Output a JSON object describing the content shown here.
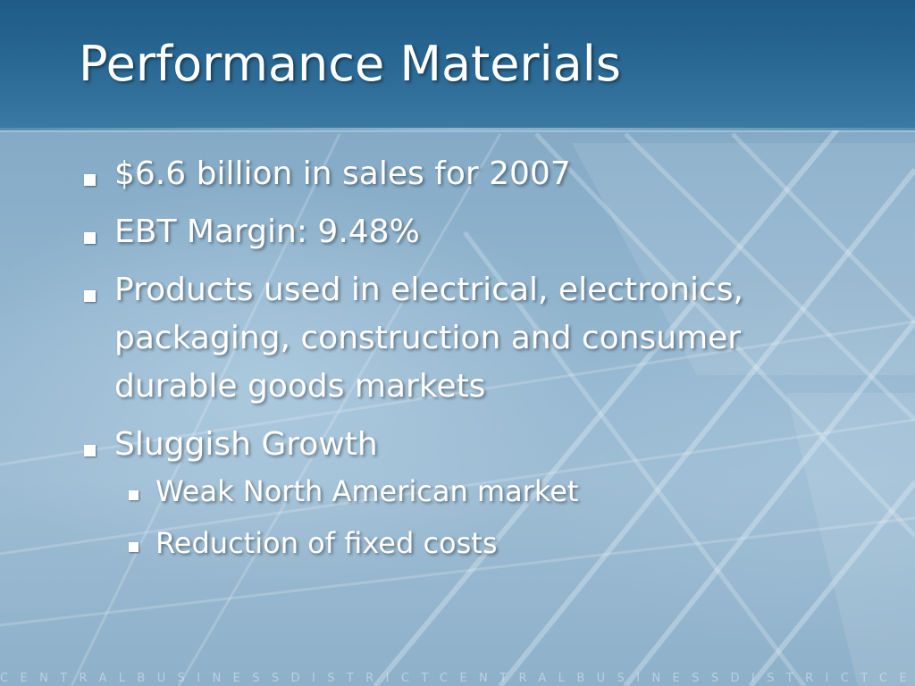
{
  "slide": {
    "title": "Performance Materials",
    "bullets": [
      {
        "text": "$6.6 billion in sales for 2007"
      },
      {
        "text": "EBT Margin: 9.48%"
      },
      {
        "text": "Products used in electrical, electronics, packaging, construction and consumer durable goods markets"
      },
      {
        "text": "Sluggish Growth"
      }
    ],
    "sub_bullets": [
      {
        "text": "Weak North American market"
      },
      {
        "text": "Reduction of fixed costs"
      }
    ],
    "footer": "CENTRALBUSINESSDISTRICTCENTRALBUSINESSDISTRICTCENTRA"
  },
  "colors": {
    "header": "#1f5b86",
    "background": "#8fb3cd",
    "text": "#ffffff"
  },
  "icons": {
    "bullet": "square-bullet-icon"
  }
}
